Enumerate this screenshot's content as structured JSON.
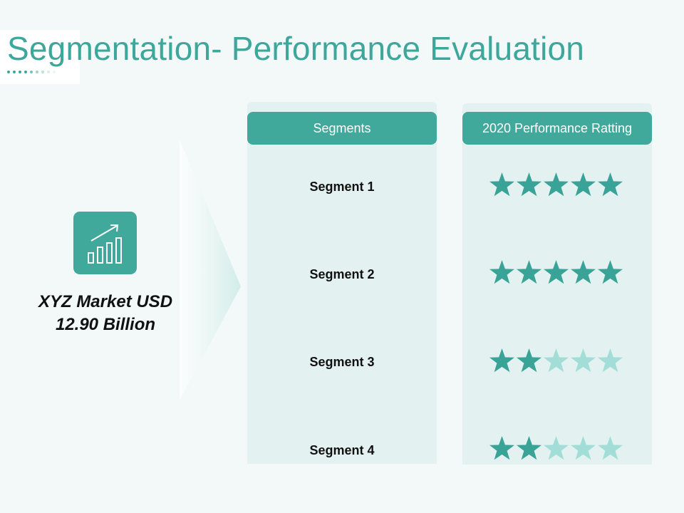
{
  "title": "Segmentation- Performance Evaluation",
  "market": {
    "icon": "bar-chart-growth-icon",
    "line1": "XYZ Market USD",
    "line2": "12.90 Billion"
  },
  "table": {
    "segments_header": "Segments",
    "rating_header": "2020 Performance Ratting",
    "max_rating": 5,
    "rows": [
      {
        "segment": "Segment 1",
        "rating": 5
      },
      {
        "segment": "Segment 2",
        "rating": 5
      },
      {
        "segment": "Segment 3",
        "rating": 2
      },
      {
        "segment": "Segment 4",
        "rating": 2
      }
    ]
  },
  "colors": {
    "accent": "#41a89c",
    "star_filled": "#3aa398",
    "star_empty": "#a3ddd7"
  }
}
